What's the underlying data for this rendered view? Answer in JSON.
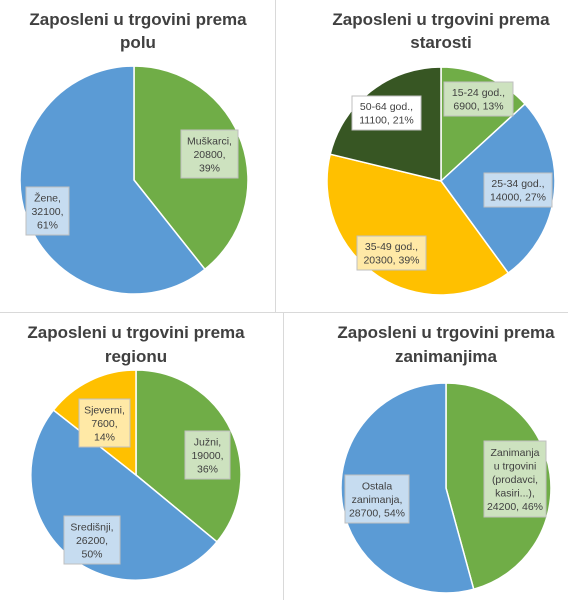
{
  "chart_data": [
    {
      "type": "pie",
      "title": [
        "Zaposleni u trgovini prema",
        "polu"
      ],
      "slices": [
        {
          "label": [
            "Muškarci,",
            "20800,",
            "39%"
          ],
          "value": 20800,
          "percent": 39,
          "color": "#70ad47"
        },
        {
          "label": [
            "Žene,",
            "32100,",
            "61%"
          ],
          "value": 32100,
          "percent": 61,
          "color": "#5b9bd5"
        }
      ]
    },
    {
      "type": "pie",
      "title": [
        "Zaposleni u trgovini prema",
        "starosti"
      ],
      "slices": [
        {
          "label": [
            "15-24 god.,",
            "6900, 13%"
          ],
          "value": 6900,
          "percent": 13,
          "color": "#70ad47"
        },
        {
          "label": [
            "25-34 god.,",
            "14000, 27%"
          ],
          "value": 14000,
          "percent": 27,
          "color": "#5b9bd5"
        },
        {
          "label": [
            "35-49 god.,",
            "20300, 39%"
          ],
          "value": 20300,
          "percent": 39,
          "color": "#ffc000"
        },
        {
          "label": [
            "50-64 god.,",
            "11100, 21%"
          ],
          "value": 11100,
          "percent": 21,
          "color": "#375623"
        }
      ]
    },
    {
      "type": "pie",
      "title": [
        "Zaposleni u trgovini prema",
        "regionu"
      ],
      "slices": [
        {
          "label": [
            "Južni,",
            "19000,",
            "36%"
          ],
          "value": 19000,
          "percent": 36,
          "color": "#70ad47"
        },
        {
          "label": [
            "Središnji,",
            "26200,",
            "50%"
          ],
          "value": 26200,
          "percent": 50,
          "color": "#5b9bd5"
        },
        {
          "label": [
            "Sjeverni,",
            "7600,",
            "14%"
          ],
          "value": 7600,
          "percent": 14,
          "color": "#ffc000"
        }
      ]
    },
    {
      "type": "pie",
      "title": [
        "Zaposleni u trgovini prema",
        "zanimanjima"
      ],
      "slices": [
        {
          "label": [
            "Zanimanja",
            "u trgovini",
            "(prodavci,",
            "kasiri...),",
            "24200, 46%"
          ],
          "value": 24200,
          "percent": 46,
          "color": "#70ad47"
        },
        {
          "label": [
            "Ostala",
            "zanimanja,",
            "28700, 54%"
          ],
          "value": 28700,
          "percent": 54,
          "color": "#5b9bd5"
        }
      ]
    }
  ]
}
